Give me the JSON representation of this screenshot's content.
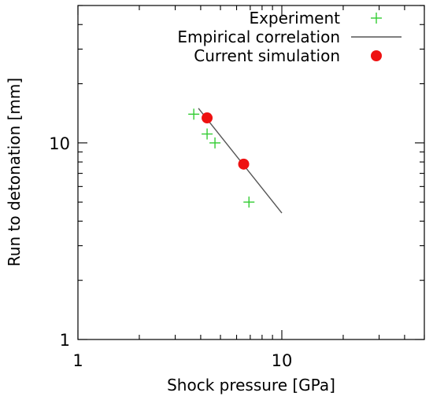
{
  "chart_data": {
    "type": "scatter",
    "xlabel": "Shock pressure [GPa]",
    "ylabel": "Run to detonation [mm]",
    "xscale": "log",
    "yscale": "log",
    "xlim": [
      1,
      50
    ],
    "ylim": [
      1,
      50
    ],
    "xticks": [
      {
        "value": 1,
        "label": "1"
      },
      {
        "value": 10,
        "label": "10"
      }
    ],
    "yticks": [
      {
        "value": 1,
        "label": "1"
      },
      {
        "value": 10,
        "label": "10"
      }
    ],
    "grid": false,
    "legend_position": "top-right",
    "series": [
      {
        "name": "Experiment",
        "kind": "scatter",
        "marker": "plus",
        "color": "#33cc33",
        "points": [
          [
            3.7,
            14.0
          ],
          [
            4.3,
            11.1
          ],
          [
            4.7,
            10.0
          ],
          [
            6.9,
            5.0
          ]
        ]
      },
      {
        "name": "Empirical correlation",
        "kind": "line",
        "color": "#555555",
        "points": [
          [
            3.9,
            15.0
          ],
          [
            10.0,
            4.4
          ]
        ]
      },
      {
        "name": "Current simulation",
        "kind": "scatter",
        "marker": "circle",
        "color": "#ee1111",
        "points": [
          [
            4.3,
            13.4
          ],
          [
            6.5,
            7.8
          ]
        ]
      }
    ]
  }
}
